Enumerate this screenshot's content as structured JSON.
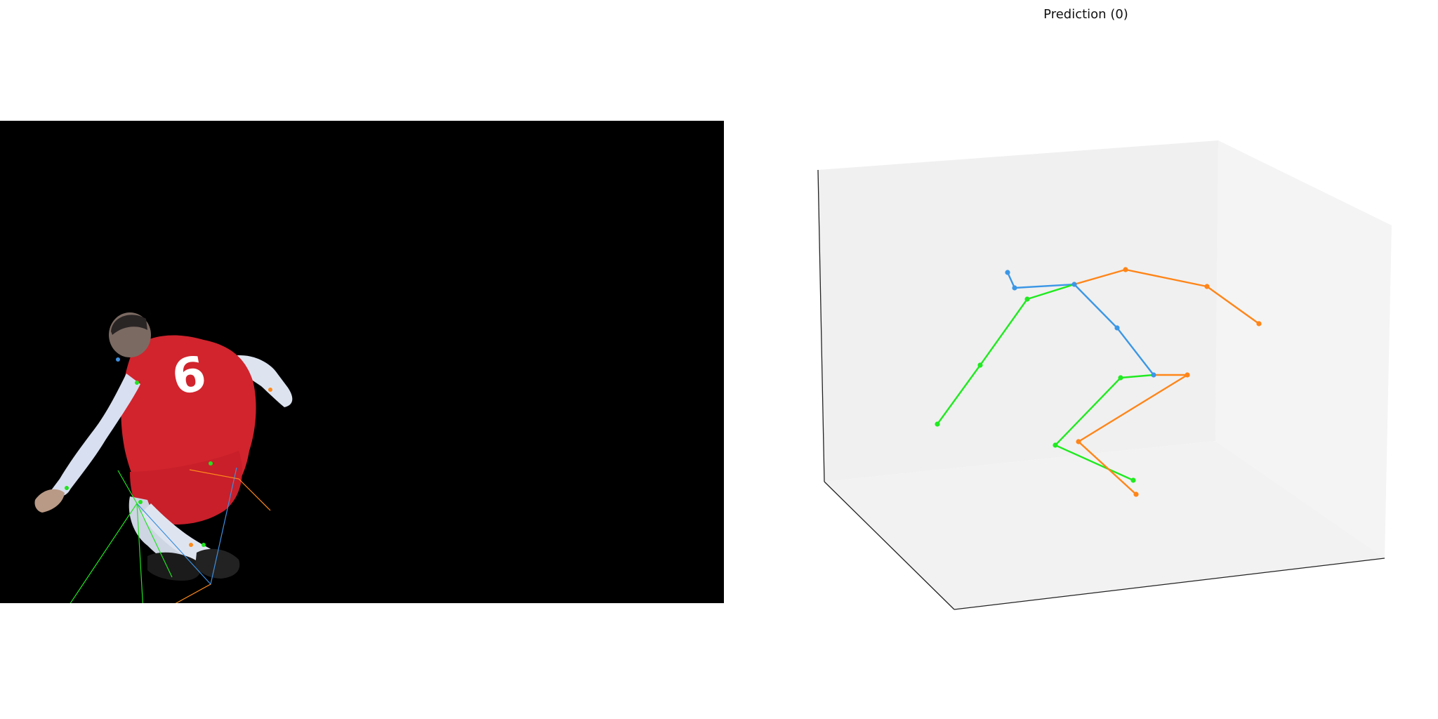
{
  "figure": {
    "title": "Prediction (0)"
  },
  "image_panel": {
    "description_hint": "",
    "colors": {
      "background": "#000000",
      "blue": "#3d8fe0",
      "green": "#20e320",
      "orange": "#ff8a1a"
    }
  },
  "pose3d": {
    "colors": {
      "center": "#3b97e6",
      "left": "#20ea20",
      "right": "#ff8518"
    },
    "bones_center": [
      [
        "head_top",
        "neck_lower"
      ],
      [
        "neck_lower",
        "thorax"
      ],
      [
        "thorax",
        "spine"
      ],
      [
        "spine",
        "pelvis"
      ]
    ],
    "bones_left": [
      [
        "thorax",
        "l_shoulder"
      ],
      [
        "l_shoulder",
        "l_elbow"
      ],
      [
        "l_elbow",
        "l_wrist"
      ],
      [
        "pelvis",
        "l_hip"
      ],
      [
        "l_hip",
        "l_knee"
      ],
      [
        "l_knee",
        "l_ankle"
      ]
    ],
    "bones_right": [
      [
        "thorax",
        "r_shoulder"
      ],
      [
        "r_shoulder",
        "r_elbow"
      ],
      [
        "r_elbow",
        "r_wrist"
      ],
      [
        "pelvis",
        "r_hip"
      ],
      [
        "r_hip",
        "r_knee"
      ],
      [
        "r_knee",
        "r_ankle"
      ]
    ]
  }
}
